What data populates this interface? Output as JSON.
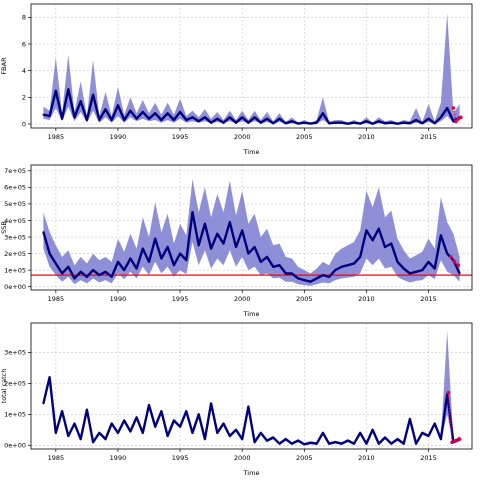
{
  "chart_data": [
    {
      "type": "line",
      "ylabel": "FBAR",
      "xlabel": "Time",
      "xlim": [
        1983,
        2018.5
      ],
      "ylim": [
        -0.3,
        9
      ],
      "x_ticks": [
        1985,
        1990,
        1995,
        2000,
        2005,
        2010,
        2015
      ],
      "y_ticks": [
        0,
        2,
        4,
        6,
        8
      ],
      "y_tick_labels": [
        "0",
        "2",
        "4",
        "6",
        "8"
      ],
      "grid": true,
      "colors": {
        "line": "#00007f",
        "band": "#7b7bd0",
        "highlight": "#e8003a",
        "grid": "#c8c8c8"
      },
      "x": [
        1984.0,
        1984.5,
        1985.0,
        1985.5,
        1986.0,
        1986.5,
        1987.0,
        1987.5,
        1988.0,
        1988.5,
        1989.0,
        1989.5,
        1990.0,
        1990.5,
        1991.0,
        1991.5,
        1992.0,
        1992.5,
        1993.0,
        1993.5,
        1994.0,
        1994.5,
        1995.0,
        1995.5,
        1996.0,
        1996.5,
        1997.0,
        1997.5,
        1998.0,
        1998.5,
        1999.0,
        1999.5,
        2000.0,
        2000.5,
        2001.0,
        2001.5,
        2002.0,
        2002.5,
        2003.0,
        2003.5,
        2004.0,
        2004.5,
        2005.0,
        2005.5,
        2006.0,
        2006.5,
        2007.0,
        2007.5,
        2008.0,
        2008.5,
        2009.0,
        2009.5,
        2010.0,
        2010.5,
        2011.0,
        2011.5,
        2012.0,
        2012.5,
        2013.0,
        2013.5,
        2014.0,
        2014.5,
        2015.0,
        2015.5,
        2016.0,
        2016.5,
        2017.0,
        2017.5
      ],
      "values": [
        0.7,
        0.6,
        2.5,
        0.4,
        2.6,
        0.5,
        1.7,
        0.3,
        2.2,
        0.3,
        1.1,
        0.3,
        1.4,
        0.3,
        1.0,
        0.4,
        0.9,
        0.4,
        0.8,
        0.3,
        0.8,
        0.3,
        0.9,
        0.3,
        0.5,
        0.2,
        0.5,
        0.1,
        0.4,
        0.1,
        0.5,
        0.1,
        0.5,
        0.1,
        0.5,
        0.1,
        0.4,
        0.05,
        0.4,
        0.05,
        0.2,
        0.03,
        0.1,
        0.03,
        0.1,
        0.8,
        0.05,
        0.1,
        0.1,
        0.02,
        0.1,
        0.03,
        0.2,
        0.02,
        0.2,
        0.05,
        0.1,
        0.02,
        0.1,
        0.05,
        0.3,
        0.05,
        0.4,
        0.05,
        0.5,
        1.2,
        0.2,
        0.5
      ],
      "upper": [
        1.3,
        1.0,
        5.0,
        0.8,
        5.2,
        0.9,
        3.2,
        0.6,
        4.8,
        0.6,
        2.4,
        0.6,
        2.8,
        0.7,
        2.0,
        0.8,
        1.8,
        0.8,
        1.6,
        0.7,
        1.6,
        0.7,
        1.9,
        0.6,
        1.0,
        0.5,
        1.1,
        0.4,
        0.9,
        0.3,
        1.0,
        0.3,
        1.0,
        0.3,
        1.0,
        0.3,
        0.9,
        0.2,
        0.8,
        0.15,
        0.5,
        0.1,
        0.3,
        0.1,
        0.3,
        2.0,
        0.15,
        0.3,
        0.3,
        0.1,
        0.3,
        0.1,
        0.5,
        0.1,
        0.5,
        0.2,
        0.3,
        0.1,
        0.3,
        0.2,
        1.2,
        0.15,
        1.5,
        0.2,
        1.6,
        8.3,
        0.8,
        1.5
      ],
      "lower": [
        0.4,
        0.3,
        1.2,
        0.2,
        1.3,
        0.2,
        0.9,
        0.1,
        1.0,
        0.1,
        0.5,
        0.1,
        0.6,
        0.1,
        0.5,
        0.2,
        0.4,
        0.2,
        0.3,
        0.1,
        0.3,
        0.1,
        0.4,
        0.1,
        0.2,
        0.1,
        0.2,
        0.05,
        0.15,
        0.05,
        0.2,
        0.05,
        0.2,
        0.05,
        0.2,
        0.05,
        0.15,
        0.0,
        0.15,
        0.0,
        0.05,
        0.0,
        0.03,
        0.0,
        0.03,
        0.3,
        0.0,
        0.03,
        0.03,
        0.0,
        0.03,
        0.0,
        0.06,
        0.0,
        0.06,
        0.0,
        0.03,
        0.0,
        0.03,
        0.0,
        0.1,
        0.0,
        0.15,
        0.0,
        0.2,
        0.6,
        0.05,
        0.2
      ],
      "highlight": {
        "x": [
          2017.0,
          2017.2,
          2017.4,
          2017.6
        ],
        "values": [
          1.2,
          0.2,
          0.4,
          0.5
        ]
      }
    },
    {
      "type": "line",
      "ylabel": "SSB",
      "xlabel": "Time",
      "xlim": [
        1983,
        2018.5
      ],
      "ylim": [
        -20000,
        735000
      ],
      "x_ticks": [
        1985,
        1990,
        1995,
        2000,
        2005,
        2010,
        2015
      ],
      "y_ticks": [
        0,
        100000,
        200000,
        300000,
        400000,
        500000,
        600000,
        700000
      ],
      "y_tick_labels": [
        "0e+00",
        "1e+05",
        "2e+05",
        "3e+05",
        "4e+05",
        "5e+05",
        "6e+05",
        "7e+05"
      ],
      "grid": true,
      "reference_line": 70000,
      "colors": {
        "line": "#00007f",
        "band": "#7b7bd0",
        "highlight": "#e8003a",
        "reference": "#ff0000",
        "grid": "#c8c8c8"
      },
      "x": [
        1984.0,
        1984.5,
        1985.0,
        1985.5,
        1986.0,
        1986.5,
        1987.0,
        1987.5,
        1988.0,
        1988.5,
        1989.0,
        1989.5,
        1990.0,
        1990.5,
        1991.0,
        1991.5,
        1992.0,
        1992.5,
        1993.0,
        1993.5,
        1994.0,
        1994.5,
        1995.0,
        1995.5,
        1996.0,
        1996.5,
        1997.0,
        1997.5,
        1998.0,
        1998.5,
        1999.0,
        1999.5,
        2000.0,
        2000.5,
        2001.0,
        2001.5,
        2002.0,
        2002.5,
        2003.0,
        2003.5,
        2004.0,
        2004.5,
        2005.0,
        2005.5,
        2006.0,
        2006.5,
        2007.0,
        2007.5,
        2008.0,
        2008.5,
        2009.0,
        2009.5,
        2010.0,
        2010.5,
        2011.0,
        2011.5,
        2012.0,
        2012.5,
        2013.0,
        2013.5,
        2014.0,
        2014.5,
        2015.0,
        2015.5,
        2016.0,
        2016.5,
        2017.0,
        2017.5
      ],
      "values": [
        330000,
        200000,
        140000,
        80000,
        120000,
        50000,
        90000,
        60000,
        100000,
        70000,
        90000,
        60000,
        150000,
        100000,
        170000,
        110000,
        230000,
        150000,
        290000,
        170000,
        240000,
        130000,
        200000,
        160000,
        450000,
        250000,
        380000,
        230000,
        320000,
        260000,
        390000,
        240000,
        340000,
        200000,
        240000,
        150000,
        180000,
        120000,
        130000,
        80000,
        80000,
        50000,
        40000,
        30000,
        50000,
        70000,
        60000,
        100000,
        120000,
        130000,
        140000,
        180000,
        340000,
        280000,
        350000,
        240000,
        260000,
        150000,
        110000,
        80000,
        90000,
        100000,
        150000,
        110000,
        310000,
        200000,
        160000,
        80000
      ],
      "upper": [
        450000,
        330000,
        250000,
        180000,
        220000,
        130000,
        180000,
        140000,
        200000,
        160000,
        180000,
        150000,
        290000,
        210000,
        320000,
        230000,
        420000,
        300000,
        510000,
        330000,
        440000,
        260000,
        380000,
        310000,
        650000,
        450000,
        600000,
        420000,
        560000,
        450000,
        640000,
        430000,
        580000,
        380000,
        440000,
        300000,
        350000,
        250000,
        260000,
        180000,
        170000,
        120000,
        100000,
        80000,
        110000,
        150000,
        130000,
        200000,
        230000,
        250000,
        270000,
        340000,
        580000,
        480000,
        600000,
        420000,
        460000,
        290000,
        220000,
        170000,
        190000,
        210000,
        290000,
        230000,
        540000,
        390000,
        320000,
        180000
      ],
      "lower": [
        230000,
        120000,
        70000,
        30000,
        60000,
        15000,
        40000,
        20000,
        50000,
        25000,
        40000,
        20000,
        80000,
        45000,
        90000,
        50000,
        120000,
        70000,
        150000,
        80000,
        120000,
        60000,
        100000,
        75000,
        270000,
        130000,
        220000,
        110000,
        170000,
        130000,
        220000,
        120000,
        180000,
        100000,
        120000,
        70000,
        80000,
        50000,
        55000,
        30000,
        30000,
        15000,
        10000,
        5000,
        15000,
        25000,
        20000,
        40000,
        50000,
        55000,
        60000,
        80000,
        170000,
        130000,
        170000,
        110000,
        120000,
        60000,
        40000,
        25000,
        35000,
        40000,
        70000,
        45000,
        160000,
        90000,
        70000,
        30000
      ],
      "highlight": {
        "x": [
          2016.8,
          2017.1,
          2017.4
        ],
        "values": [
          180000,
          150000,
          130000
        ]
      }
    },
    {
      "type": "line",
      "ylabel": "total catch",
      "xlabel": "Time",
      "xlim": [
        1983,
        2018.5
      ],
      "ylim": [
        -12000,
        395000
      ],
      "x_ticks": [
        1985,
        1990,
        1995,
        2000,
        2005,
        2010,
        2015
      ],
      "y_ticks": [
        0,
        100000,
        200000,
        300000
      ],
      "y_tick_labels": [
        "0e+00",
        "1e+05",
        "2e+05",
        "3e+05"
      ],
      "grid": true,
      "colors": {
        "line": "#00007f",
        "band": "#7b7bd0",
        "highlight": "#e8003a",
        "grid": "#c8c8c8"
      },
      "x": [
        1984.0,
        1984.5,
        1985.0,
        1985.5,
        1986.0,
        1986.5,
        1987.0,
        1987.5,
        1988.0,
        1988.5,
        1989.0,
        1989.5,
        1990.0,
        1990.5,
        1991.0,
        1991.5,
        1992.0,
        1992.5,
        1993.0,
        1993.5,
        1994.0,
        1994.5,
        1995.0,
        1995.5,
        1996.0,
        1996.5,
        1997.0,
        1997.5,
        1998.0,
        1998.5,
        1999.0,
        1999.5,
        2000.0,
        2000.5,
        2001.0,
        2001.5,
        2002.0,
        2002.5,
        2003.0,
        2003.5,
        2004.0,
        2004.5,
        2005.0,
        2005.5,
        2006.0,
        2006.5,
        2007.0,
        2007.5,
        2008.0,
        2008.5,
        2009.0,
        2009.5,
        2010.0,
        2010.5,
        2011.0,
        2011.5,
        2012.0,
        2012.5,
        2013.0,
        2013.5,
        2014.0,
        2014.5,
        2015.0,
        2015.5,
        2016.0,
        2016.5,
        2017.0,
        2017.5
      ],
      "values": [
        135000,
        220000,
        40000,
        110000,
        30000,
        70000,
        20000,
        115000,
        10000,
        40000,
        20000,
        70000,
        40000,
        80000,
        45000,
        90000,
        40000,
        130000,
        60000,
        110000,
        30000,
        80000,
        60000,
        110000,
        40000,
        100000,
        20000,
        135000,
        40000,
        70000,
        30000,
        50000,
        20000,
        125000,
        10000,
        40000,
        15000,
        25000,
        5000,
        20000,
        5000,
        15000,
        3000,
        8000,
        5000,
        40000,
        5000,
        10000,
        5000,
        15000,
        5000,
        40000,
        5000,
        50000,
        5000,
        25000,
        5000,
        20000,
        5000,
        85000,
        5000,
        40000,
        30000,
        70000,
        20000,
        165000,
        10000,
        20000
      ],
      "upper": [
        140000,
        225000,
        45000,
        115000,
        35000,
        75000,
        25000,
        120000,
        15000,
        45000,
        25000,
        75000,
        45000,
        85000,
        50000,
        95000,
        45000,
        135000,
        65000,
        115000,
        35000,
        85000,
        65000,
        115000,
        45000,
        105000,
        25000,
        140000,
        45000,
        75000,
        35000,
        55000,
        25000,
        130000,
        15000,
        45000,
        20000,
        30000,
        10000,
        25000,
        10000,
        20000,
        8000,
        13000,
        10000,
        45000,
        10000,
        15000,
        10000,
        20000,
        10000,
        45000,
        10000,
        55000,
        10000,
        30000,
        10000,
        25000,
        10000,
        90000,
        10000,
        45000,
        35000,
        75000,
        25000,
        370000,
        15000,
        30000
      ],
      "lower": [
        130000,
        215000,
        35000,
        105000,
        25000,
        65000,
        15000,
        110000,
        5000,
        35000,
        15000,
        65000,
        35000,
        75000,
        40000,
        85000,
        35000,
        125000,
        55000,
        105000,
        25000,
        75000,
        55000,
        105000,
        35000,
        95000,
        15000,
        130000,
        35000,
        65000,
        25000,
        45000,
        15000,
        120000,
        5000,
        35000,
        10000,
        20000,
        2000,
        15000,
        2000,
        10000,
        1000,
        4000,
        2000,
        35000,
        2000,
        6000,
        2000,
        10000,
        2000,
        35000,
        2000,
        45000,
        2000,
        20000,
        2000,
        15000,
        2000,
        80000,
        2000,
        35000,
        25000,
        65000,
        15000,
        100000,
        5000,
        12000
      ],
      "highlight": {
        "x": [
          2016.6,
          2016.9,
          2017.2,
          2017.5
        ],
        "values": [
          170000,
          10000,
          15000,
          20000
        ]
      }
    }
  ]
}
